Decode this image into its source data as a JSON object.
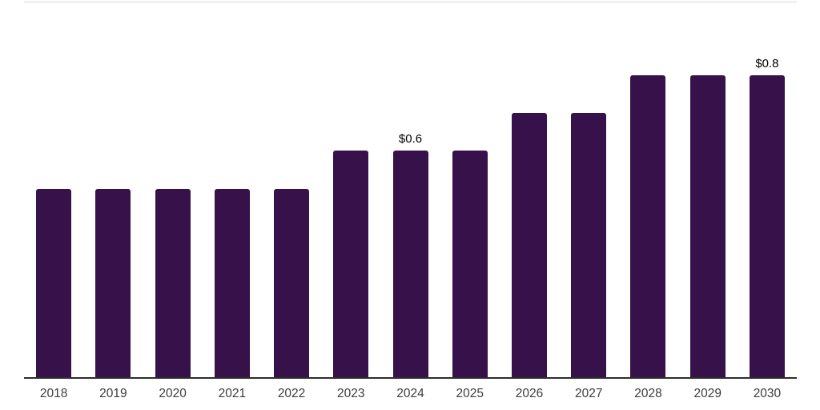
{
  "page": {
    "background": "#ffffff"
  },
  "chart_data": {
    "type": "bar",
    "title": "",
    "xlabel": "",
    "ylabel": "",
    "categories": [
      "2018",
      "2019",
      "2020",
      "2021",
      "2022",
      "2023",
      "2024",
      "2025",
      "2026",
      "2027",
      "2028",
      "2029",
      "2030"
    ],
    "values": [
      0.5,
      0.5,
      0.5,
      0.5,
      0.5,
      0.6,
      0.6,
      0.6,
      0.7,
      0.7,
      0.8,
      0.8,
      0.8
    ],
    "data_labels": {
      "2024": "$0.6",
      "2030": "$0.8"
    },
    "ylim": [
      0,
      1.0
    ],
    "grid": "single light gridline at top of plot area",
    "legend": "none",
    "y_axis": "hidden",
    "colors": {
      "bar": "#36114a",
      "axis_line": "#2e2e2e",
      "top_gridline": "#f0f0f0",
      "tick_label": "#3c3c3c",
      "data_label": "#000000"
    }
  }
}
